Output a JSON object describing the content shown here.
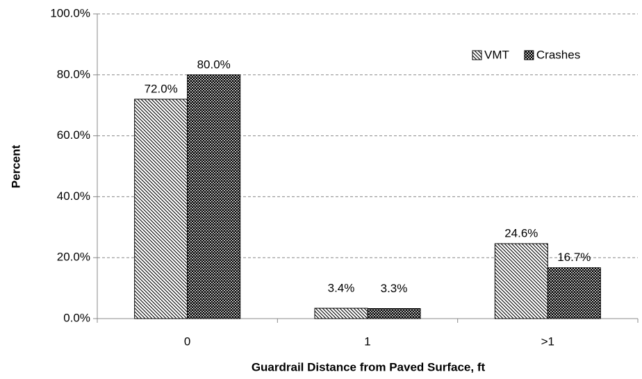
{
  "chart_data": {
    "type": "bar",
    "x_label": "Guardrail Distance from Paved Surface, ft",
    "y_label": "Percent",
    "categories": [
      "0",
      "1",
      ">1"
    ],
    "series": [
      {
        "name": "VMT",
        "color": "#000000",
        "values": [
          72.0,
          3.4,
          24.6
        ],
        "value_labels": [
          "72.0%",
          "3.4%",
          "24.6%"
        ]
      },
      {
        "name": "Crashes",
        "color": "#000000",
        "values": [
          80.0,
          3.3,
          16.7
        ],
        "value_labels": [
          "80.0%",
          "3.3%",
          "16.7%"
        ]
      }
    ],
    "ylim": [
      0,
      100
    ],
    "yticks": [
      {
        "value": 0,
        "label": "0.0%"
      },
      {
        "value": 20,
        "label": "20.0%"
      },
      {
        "value": 40,
        "label": "40.0%"
      },
      {
        "value": 60,
        "label": "60.0%"
      },
      {
        "value": 80,
        "label": "80.0%"
      },
      {
        "value": 100,
        "label": "100.0%"
      }
    ],
    "grid": true,
    "legend": "upper right"
  }
}
